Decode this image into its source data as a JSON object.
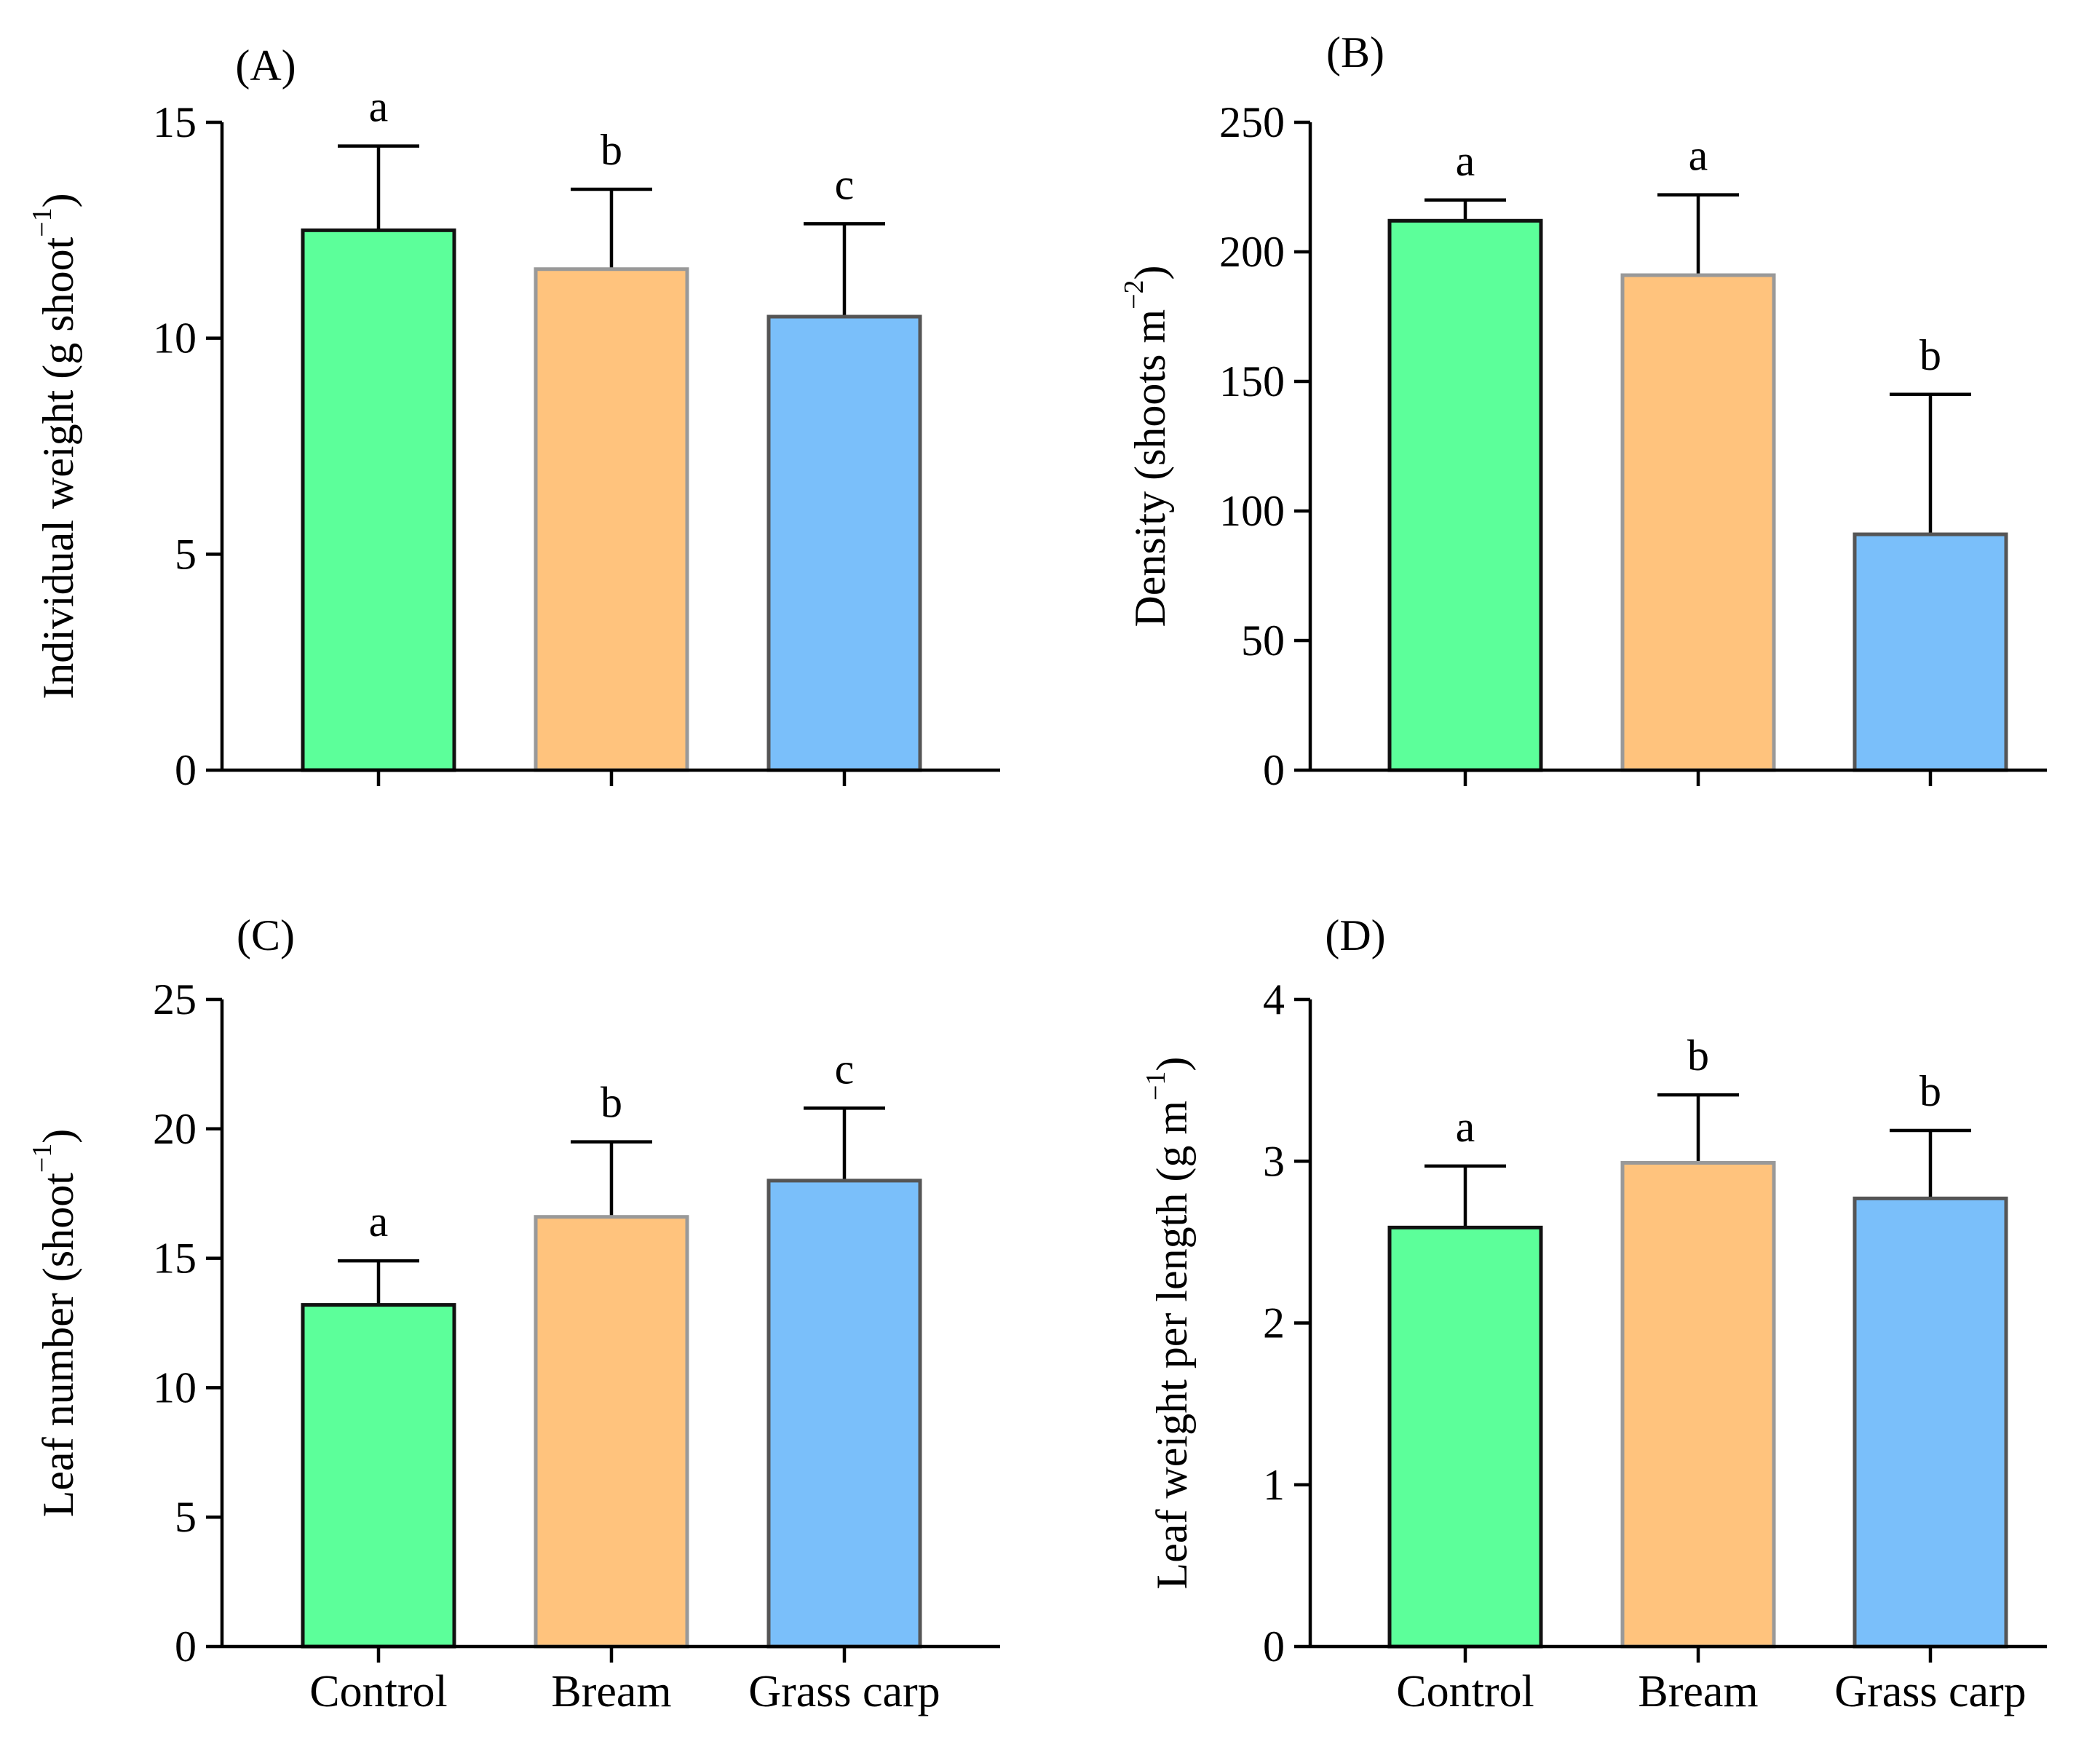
{
  "figure": {
    "categories": [
      "Control",
      "Bream",
      "Grass carp"
    ],
    "colors": {
      "fills": [
        "#5cff9a",
        "#ffc37d",
        "#7abffa"
      ],
      "strokes": [
        "#111111",
        "#999999",
        "#555555"
      ],
      "axis": "#000000"
    }
  },
  "chart_data": [
    {
      "panel": "(A)",
      "type": "bar",
      "categories": [
        "Control",
        "Bream",
        "Grass carp"
      ],
      "values": [
        12.5,
        11.6,
        10.5
      ],
      "errors": [
        1.95,
        1.85,
        2.15
      ],
      "significance": [
        "a",
        "b",
        "c"
      ],
      "ylabel": {
        "main": "Individual weight (g shoot",
        "sup": "−1",
        "close": ")"
      },
      "ylim": [
        0,
        15
      ],
      "yticks": [
        0,
        5,
        10,
        15
      ],
      "show_category_labels": false
    },
    {
      "panel": "(B)",
      "type": "bar",
      "categories": [
        "Control",
        "Bream",
        "Grass carp"
      ],
      "values": [
        212,
        191,
        91
      ],
      "errors": [
        8,
        31,
        54
      ],
      "significance": [
        "a",
        "a",
        "b"
      ],
      "ylabel": {
        "main": "Density (shoots m",
        "sup": "−2",
        "close": ")"
      },
      "ylim": [
        0,
        250
      ],
      "yticks": [
        0,
        50,
        100,
        150,
        200,
        250
      ],
      "show_category_labels": false
    },
    {
      "panel": "(C)",
      "type": "bar",
      "categories": [
        "Control",
        "Bream",
        "Grass carp"
      ],
      "values": [
        13.2,
        16.6,
        18.0
      ],
      "errors": [
        1.7,
        2.9,
        2.8
      ],
      "significance": [
        "a",
        "b",
        "c"
      ],
      "ylabel": {
        "main": "Leaf number (shoot",
        "sup": "−1",
        "close": ")"
      },
      "ylim": [
        0,
        25
      ],
      "yticks": [
        0,
        5,
        10,
        15,
        20,
        25
      ],
      "show_category_labels": true
    },
    {
      "panel": "(D)",
      "type": "bar",
      "categories": [
        "Control",
        "Bream",
        "Grass carp"
      ],
      "values": [
        2.59,
        2.99,
        2.77
      ],
      "errors": [
        0.38,
        0.42,
        0.42
      ],
      "significance": [
        "a",
        "b",
        "b"
      ],
      "ylabel": {
        "main": "Leaf weight per length (g m",
        "sup": "−1",
        "close": ")"
      },
      "ylim": [
        0,
        4
      ],
      "yticks": [
        0,
        1,
        2,
        3,
        4
      ],
      "show_category_labels": true
    }
  ]
}
